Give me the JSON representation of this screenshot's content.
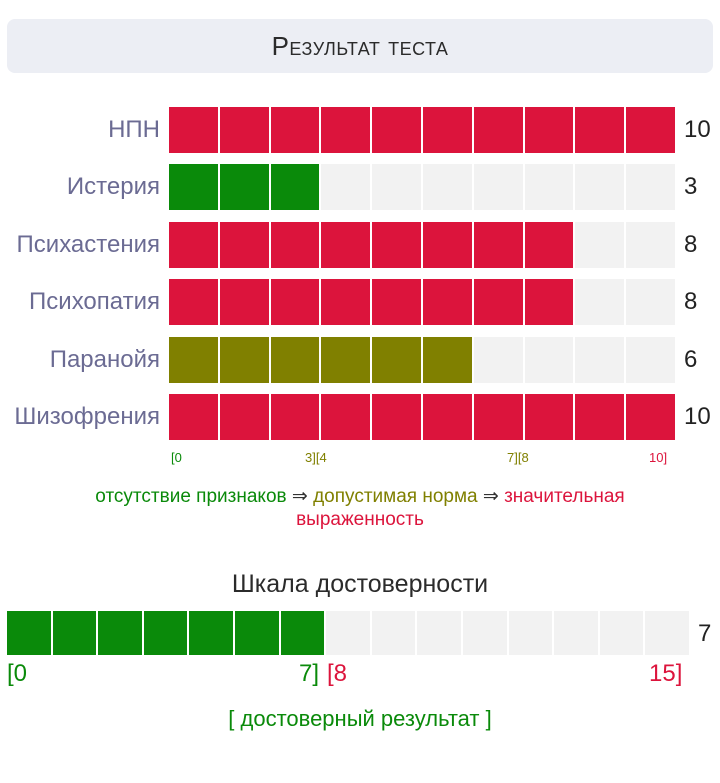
{
  "header": {
    "title": "Результат теста"
  },
  "colors": {
    "high": "#dc143c",
    "low": "#0a8a0a",
    "mid": "#808000",
    "empty": "#f2f2f2"
  },
  "max_segments": 10,
  "scales": [
    {
      "label": "НПН",
      "value": "10",
      "score": 10,
      "zone": "high"
    },
    {
      "label": "Истерия",
      "value": "3",
      "score": 3,
      "zone": "low"
    },
    {
      "label": "Психастения",
      "value": "8",
      "score": 8,
      "zone": "high"
    },
    {
      "label": "Психопатия",
      "value": "8",
      "score": 8,
      "zone": "high"
    },
    {
      "label": "Паранойя",
      "value": "6",
      "score": 6,
      "zone": "mid"
    },
    {
      "label": "Шизофрения",
      "value": "10",
      "score": 10,
      "zone": "high"
    }
  ],
  "scale_ticks": [
    {
      "text": "[0",
      "zone": "low"
    },
    {
      "text": "3][4",
      "zone": "low_mid"
    },
    {
      "text": "7][8",
      "zone": "mid_high"
    },
    {
      "text": "10]",
      "zone": "high"
    }
  ],
  "legend": {
    "low": "отсутствие признаков",
    "arrow": " ⇒ ",
    "mid": "допустимая норма",
    "high": "значительная выраженность"
  },
  "reliability": {
    "title": "Шкала достоверности",
    "value": "7",
    "score": 7,
    "max_segments": 15,
    "tick_start": "[0",
    "tick_mid_a": "7]",
    "tick_mid_b": "[8",
    "tick_end": "15]",
    "result": "[ достоверный результат ]"
  }
}
